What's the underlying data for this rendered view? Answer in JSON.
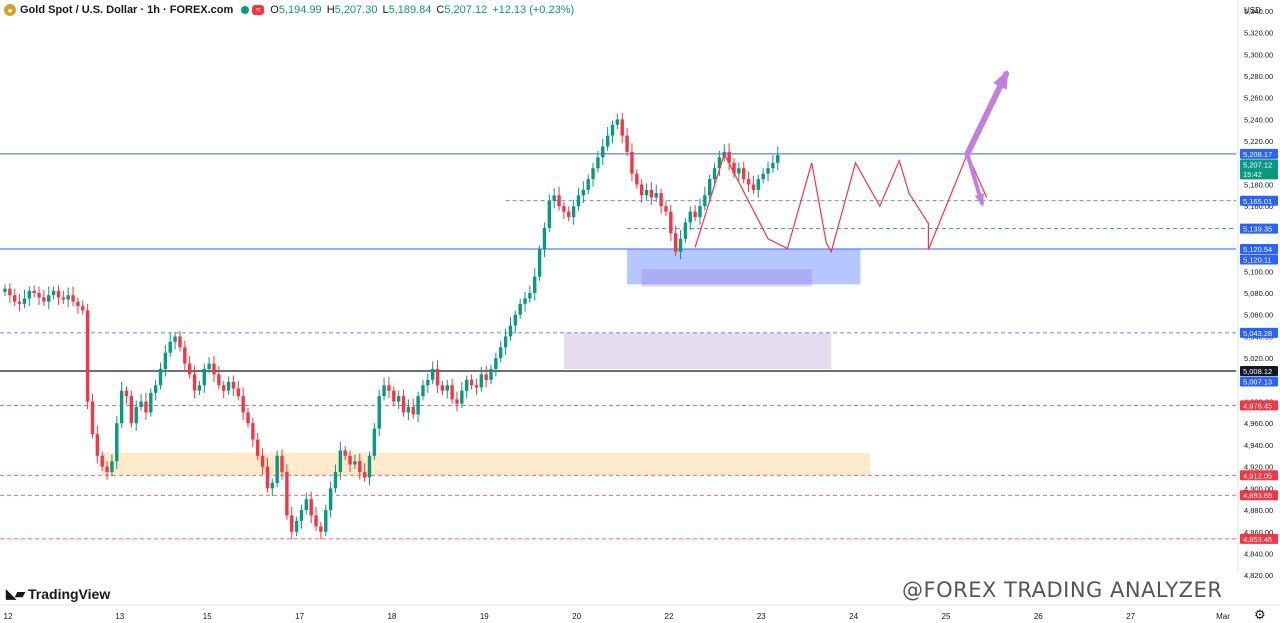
{
  "header": {
    "title": "Gold Spot / U.S. Dollar · 1h · FOREX.com",
    "open_label": "O",
    "open": "5,194.99",
    "high_label": "H",
    "high": "5,207.30",
    "low_label": "L",
    "low": "5,189.84",
    "close_label": "C",
    "close": "5,207.12",
    "change": "+12.13 (+0.23%)"
  },
  "currency": "USD",
  "branding": {
    "logo": "TradingView",
    "watermark": "@FOREX TRADING ANALYZER"
  },
  "colors": {
    "up": "#089981",
    "down": "#f23645",
    "accent": "#2962ff",
    "arrow": "#c27ee0",
    "zigzag": "#f23645"
  },
  "chart_data": {
    "type": "candlestick",
    "title": "Gold Spot / U.S. Dollar · 1h · FOREX.com",
    "ylim": [
      4820,
      5350
    ],
    "y_ticks": [
      "5,340.00",
      "5,320.00",
      "5,300.00",
      "5,280.00",
      "5,260.00",
      "5,240.00",
      "5,220.00",
      "5,200.00",
      "5,180.00",
      "5,160.00",
      "5,140.00",
      "5,120.00",
      "5,100.00",
      "5,080.00",
      "5,060.00",
      "5,040.00",
      "5,020.00",
      "5,000.00",
      "4,980.00",
      "4,960.00",
      "4,940.00",
      "4,920.00",
      "4,900.00",
      "4,880.00",
      "4,860.00",
      "4,840.00",
      "4,820.00"
    ],
    "x_ticks": [
      {
        "label": "12",
        "bar": 0
      },
      {
        "label": "13",
        "bar": 23
      },
      {
        "label": "15",
        "bar": 41
      },
      {
        "label": "17",
        "bar": 60
      },
      {
        "label": "18",
        "bar": 79
      },
      {
        "label": "19",
        "bar": 98
      },
      {
        "label": "20",
        "bar": 117
      },
      {
        "label": "22",
        "bar": 136
      },
      {
        "label": "23",
        "bar": 155
      },
      {
        "label": "24",
        "bar": 174
      },
      {
        "label": "25",
        "bar": 193
      },
      {
        "label": "26",
        "bar": 212
      },
      {
        "label": "27",
        "bar": 231
      },
      {
        "label": "Mar",
        "bar": 250
      }
    ],
    "closes": [
      5084,
      5078,
      5072,
      5070,
      5075,
      5082,
      5080,
      5076,
      5072,
      5078,
      5082,
      5076,
      5074,
      5078,
      5072,
      5068,
      5064,
      4980,
      4950,
      4930,
      4920,
      4915,
      4925,
      4960,
      4990,
      4985,
      4960,
      4975,
      4980,
      4970,
      4988,
      4995,
      5010,
      5025,
      5035,
      5040,
      5030,
      5015,
      5005,
      4990,
      4995,
      5010,
      5015,
      5005,
      4995,
      4990,
      4998,
      4992,
      4985,
      4970,
      4960,
      4945,
      4930,
      4920,
      4900,
      4905,
      4930,
      4915,
      4875,
      4860,
      4870,
      4880,
      4890,
      4875,
      4865,
      4860,
      4880,
      4900,
      4915,
      4935,
      4930,
      4922,
      4925,
      4915,
      4910,
      4930,
      4955,
      4985,
      4995,
      4990,
      4980,
      4985,
      4970,
      4975,
      4968,
      4985,
      4995,
      5000,
      5010,
      4995,
      4990,
      4995,
      4982,
      4978,
      4990,
      5000,
      4995,
      4993,
      5005,
      5000,
      5010,
      5020,
      5030,
      5040,
      5050,
      5060,
      5070,
      5075,
      5080,
      5095,
      5120,
      5140,
      5165,
      5170,
      5160,
      5155,
      5150,
      5160,
      5170,
      5175,
      5185,
      5195,
      5205,
      5215,
      5225,
      5235,
      5240,
      5225,
      5210,
      5190,
      5180,
      5170,
      5175,
      5168,
      5172,
      5160,
      5155,
      5135,
      5118,
      5130,
      5145,
      5155,
      5150,
      5160,
      5170,
      5185,
      5195,
      5205,
      5210,
      5200,
      5190,
      5195,
      5185,
      5180,
      5175,
      5185,
      5190,
      5195,
      5200,
      5207.12
    ],
    "series": [
      {
        "name": "Close",
        "values_ref": "closes"
      }
    ],
    "levels": [
      {
        "value": 5208.17,
        "label": "5,208.17",
        "kind": "current-line",
        "color": "#2962ff"
      },
      {
        "value": 5207.12,
        "label": "5,207.12",
        "sub": "15:42",
        "kind": "last",
        "color": "#089981"
      },
      {
        "value": 5165.01,
        "label": "5,165.01",
        "kind": "dashed",
        "color": "#2962ff"
      },
      {
        "value": 5139.35,
        "label": "5,139.35",
        "kind": "dashed",
        "color": "#2962ff"
      },
      {
        "value": 5120.54,
        "label": "5,120.54",
        "kind": "solid",
        "color": "#2962ff"
      },
      {
        "value": 5120.11,
        "label": "5,120.11",
        "kind": "label",
        "color": "#2962ff"
      },
      {
        "value": 5043.28,
        "label": "5,043.28",
        "kind": "dashed",
        "color": "#2962ff"
      },
      {
        "value": 5008.12,
        "label": "5,008.12",
        "kind": "solid-black",
        "color": "#131722"
      },
      {
        "value": 5007.13,
        "label": "5,007.13",
        "kind": "label",
        "color": "#2962ff"
      },
      {
        "value": 4976.45,
        "label": "4,976.45",
        "kind": "dashed",
        "color": "#f23645"
      },
      {
        "value": 4912.05,
        "label": "4,912.05",
        "kind": "dashed",
        "color": "#f23645"
      },
      {
        "value": 4893.65,
        "label": "4,893.65",
        "kind": "dashed",
        "color": "#f23645"
      },
      {
        "value": 4853.45,
        "label": "4,853.45",
        "kind": "dashed",
        "color": "#f23645"
      }
    ],
    "zones": [
      {
        "name": "demand-zone-top",
        "from_bar": 128,
        "to_bar": 176,
        "y_high": 5120,
        "y_low": 5088,
        "color": "#2962ff",
        "opacity": 0.35
      },
      {
        "name": "inner-zone",
        "from_bar": 131,
        "to_bar": 166,
        "y_high": 5102,
        "y_low": 5086,
        "color": "#9c7fd9",
        "opacity": 0.35
      },
      {
        "name": "mid-zone",
        "from_bar": 115,
        "to_bar": 170,
        "y_high": 5043,
        "y_low": 5010,
        "color": "#b39ddb",
        "opacity": 0.35
      },
      {
        "name": "low-zone",
        "from_bar": 20,
        "to_bar": 178,
        "y_high": 4933,
        "y_low": 4912,
        "color": "#ffd59a",
        "opacity": 0.5
      }
    ],
    "zigzag": [
      [
        142,
        5122
      ],
      [
        148,
        5208
      ],
      [
        157,
        5130
      ],
      [
        161,
        5121
      ],
      [
        166,
        5200
      ],
      [
        169,
        5126
      ],
      [
        170,
        5118
      ],
      [
        175,
        5200
      ],
      [
        180,
        5160
      ],
      [
        184,
        5202
      ],
      [
        186,
        5172
      ],
      [
        190,
        5144
      ],
      [
        190,
        5120
      ],
      [
        198,
        5208
      ],
      [
        202,
        5168
      ]
    ],
    "arrows": [
      {
        "from": [
          198,
          5208
        ],
        "to": [
          206,
          5282
        ],
        "kind": "up"
      },
      {
        "from": [
          198,
          5208
        ],
        "to": [
          201,
          5163
        ],
        "kind": "down"
      }
    ]
  }
}
